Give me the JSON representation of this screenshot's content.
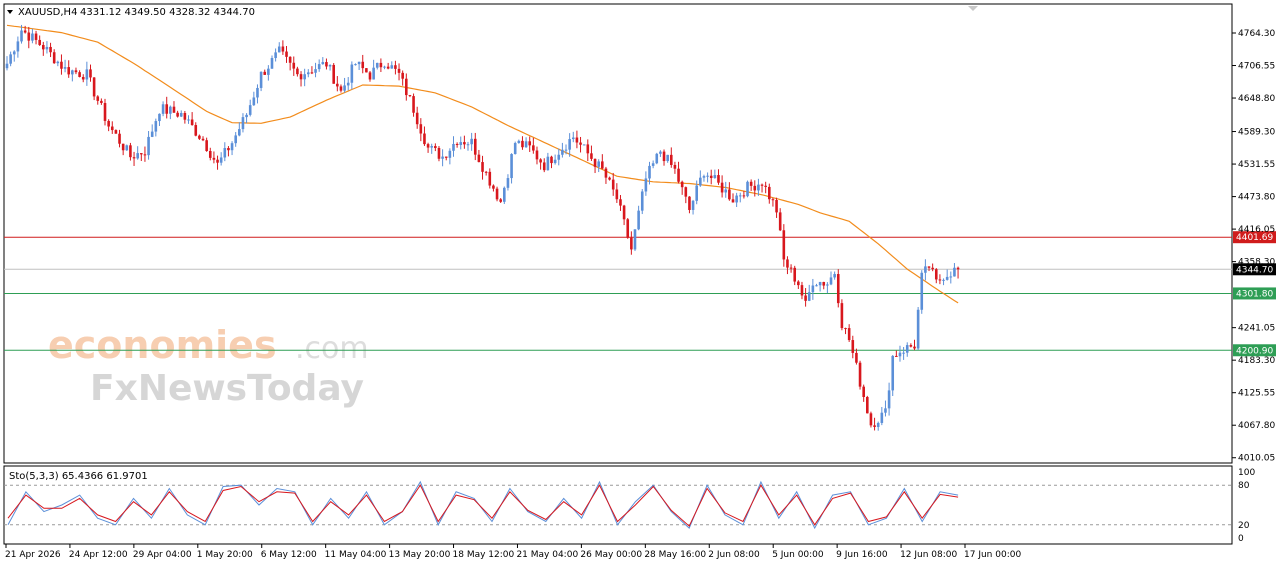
{
  "header": {
    "symbol": "XAUUSD,H4",
    "ohlc": "4331.12 4349.50 4328.32 4344.70"
  },
  "watermark": {
    "line1": "economies",
    "line1_suffix": ".com",
    "line2": "FxNewsToday"
  },
  "colors": {
    "bull": "#5b8fd8",
    "bear": "#d8171d",
    "ma": "#f28c1c",
    "resistance": "#d01c1c",
    "support": "#2e9e55",
    "current_price": "#000000",
    "stoch_main": "#5b8fd8",
    "stoch_signal": "#d8171d"
  },
  "chart_data": [
    {
      "type": "candlestick",
      "title": "XAUUSD,H4",
      "timeframe": "H4",
      "last_ohlc": {
        "open": 4331.12,
        "high": 4349.5,
        "low": 4328.32,
        "close": 4344.7
      },
      "ylim": [
        4000,
        4805
      ],
      "y_ticks": [
        "4764.30",
        "4706.55",
        "4648.80",
        "4589.30",
        "4531.55",
        "4473.80",
        "4416.05",
        "4358.30",
        "4241.05",
        "4183.30",
        "4125.55",
        "4067.80",
        "4010.05"
      ],
      "x_ticks": [
        "21 Apr 2026",
        "24 Apr 12:00",
        "29 Apr 04:00",
        "1 May 20:00",
        "6 May 12:00",
        "11 May 04:00",
        "13 May 20:00",
        "18 May 12:00",
        "21 May 04:00",
        "26 May 00:00",
        "28 May 16:00",
        "2 Jun 08:00",
        "5 Jun 00:00",
        "9 Jun 16:00",
        "12 Jun 08:00",
        "17 Jun 00:00"
      ],
      "horizontal_levels": [
        {
          "label": "4401.69",
          "value": 4401.69,
          "kind": "resistance"
        },
        {
          "label": "4344.70",
          "value": 4344.7,
          "kind": "current_price"
        },
        {
          "label": "4301.80",
          "value": 4301.8,
          "kind": "support"
        },
        {
          "label": "4200.90",
          "value": 4200.9,
          "kind": "support"
        }
      ],
      "moving_average_anchors": [
        [
          0,
          4778
        ],
        [
          15,
          4765
        ],
        [
          25,
          4748
        ],
        [
          35,
          4710
        ],
        [
          45,
          4668
        ],
        [
          55,
          4625
        ],
        [
          62,
          4605
        ],
        [
          70,
          4604
        ],
        [
          78,
          4615
        ],
        [
          88,
          4645
        ],
        [
          98,
          4672
        ],
        [
          108,
          4670
        ],
        [
          118,
          4658
        ],
        [
          128,
          4633
        ],
        [
          138,
          4600
        ],
        [
          148,
          4570
        ],
        [
          158,
          4540
        ],
        [
          168,
          4510
        ],
        [
          178,
          4500
        ],
        [
          188,
          4497
        ],
        [
          198,
          4490
        ],
        [
          208,
          4477
        ],
        [
          218,
          4460
        ],
        [
          224,
          4445
        ],
        [
          232,
          4430
        ],
        [
          240,
          4390
        ],
        [
          248,
          4345
        ],
        [
          256,
          4310
        ],
        [
          262,
          4285
        ]
      ],
      "series_anchors": [
        [
          0,
          4710
        ],
        [
          4,
          4770
        ],
        [
          10,
          4740
        ],
        [
          16,
          4700
        ],
        [
          22,
          4690
        ],
        [
          28,
          4600
        ],
        [
          34,
          4545
        ],
        [
          38,
          4555
        ],
        [
          42,
          4630
        ],
        [
          48,
          4620
        ],
        [
          54,
          4575
        ],
        [
          58,
          4530
        ],
        [
          62,
          4570
        ],
        [
          66,
          4620
        ],
        [
          70,
          4690
        ],
        [
          75,
          4730
        ],
        [
          80,
          4690
        ],
        [
          84,
          4700
        ],
        [
          88,
          4710
        ],
        [
          92,
          4660
        ],
        [
          96,
          4710
        ],
        [
          100,
          4690
        ],
        [
          104,
          4715
        ],
        [
          108,
          4690
        ],
        [
          112,
          4630
        ],
        [
          116,
          4560
        ],
        [
          120,
          4545
        ],
        [
          124,
          4575
        ],
        [
          128,
          4570
        ],
        [
          132,
          4515
        ],
        [
          136,
          4465
        ],
        [
          140,
          4570
        ],
        [
          144,
          4560
        ],
        [
          148,
          4530
        ],
        [
          152,
          4555
        ],
        [
          156,
          4580
        ],
        [
          160,
          4550
        ],
        [
          164,
          4520
        ],
        [
          168,
          4470
        ],
        [
          172,
          4380
        ],
        [
          176,
          4505
        ],
        [
          180,
          4555
        ],
        [
          184,
          4520
        ],
        [
          188,
          4450
        ],
        [
          192,
          4520
        ],
        [
          196,
          4495
        ],
        [
          200,
          4470
        ],
        [
          204,
          4490
        ],
        [
          208,
          4500
        ],
        [
          212,
          4450
        ],
        [
          214,
          4360
        ],
        [
          218,
          4320
        ],
        [
          220,
          4280
        ],
        [
          222,
          4325
        ],
        [
          226,
          4320
        ],
        [
          228,
          4340
        ],
        [
          230,
          4250
        ],
        [
          232,
          4220
        ],
        [
          234,
          4170
        ],
        [
          236,
          4120
        ],
        [
          238,
          4070
        ],
        [
          240,
          4080
        ],
        [
          242,
          4090
        ],
        [
          244,
          4190
        ],
        [
          246,
          4200
        ],
        [
          250,
          4210
        ],
        [
          252,
          4330
        ],
        [
          254,
          4350
        ],
        [
          256,
          4320
        ],
        [
          258,
          4335
        ],
        [
          260,
          4340
        ],
        [
          262,
          4345
        ]
      ]
    },
    {
      "type": "line",
      "title": "Sto(5,3,3) 65.4366 61.9701",
      "ylim": [
        0,
        100
      ],
      "y_ticks": [
        "100",
        "80",
        "20",
        "0"
      ],
      "levels": [
        80,
        20
      ],
      "series": [
        {
          "name": "main",
          "values": [
            20,
            70,
            40,
            50,
            65,
            30,
            20,
            60,
            30,
            75,
            35,
            20,
            78,
            80,
            50,
            75,
            70,
            20,
            60,
            30,
            70,
            20,
            40,
            85,
            20,
            70,
            60,
            25,
            75,
            40,
            25,
            60,
            30,
            85,
            20,
            55,
            80,
            40,
            15,
            80,
            35,
            20,
            85,
            30,
            70,
            15,
            65,
            70,
            20,
            30,
            75,
            25,
            70,
            65
          ]
        },
        {
          "name": "signal",
          "values": [
            30,
            65,
            45,
            45,
            60,
            35,
            25,
            55,
            35,
            70,
            40,
            25,
            72,
            78,
            55,
            70,
            68,
            25,
            55,
            35,
            65,
            25,
            40,
            80,
            25,
            65,
            58,
            30,
            70,
            42,
            28,
            55,
            35,
            80,
            25,
            50,
            78,
            42,
            18,
            75,
            38,
            25,
            80,
            35,
            65,
            20,
            60,
            68,
            25,
            32,
            70,
            30,
            66,
            62
          ]
        }
      ]
    }
  ]
}
